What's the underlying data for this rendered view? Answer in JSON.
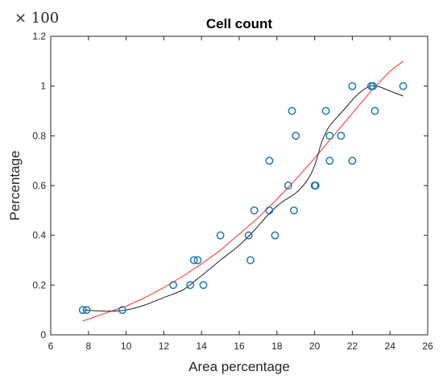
{
  "chart_data": {
    "type": "scatter",
    "title": "Cell count",
    "xlabel": "Area percentage",
    "ylabel": "Percentage",
    "y_multiplier": "× 100",
    "xlim": [
      6,
      26
    ],
    "ylim": [
      0,
      1.2
    ],
    "x_ticks": [
      "6",
      "8",
      "10",
      "12",
      "14",
      "16",
      "18",
      "20",
      "22",
      "24",
      "26"
    ],
    "y_ticks": [
      "0",
      "0.2",
      "0.4",
      "0.6",
      "0.8",
      "1",
      "1.2"
    ],
    "grid": false,
    "colors": {
      "points": "#1f77b4",
      "fit": "#ff2a2a",
      "smooth": "#202020"
    },
    "series": [
      {
        "points": [
          [
            7.7,
            0.1
          ],
          [
            7.9,
            0.1
          ],
          [
            9.8,
            0.1
          ],
          [
            12.5,
            0.2
          ],
          [
            13.4,
            0.2
          ],
          [
            13.6,
            0.3
          ],
          [
            13.8,
            0.3
          ],
          [
            14.1,
            0.2
          ],
          [
            15.0,
            0.4
          ],
          [
            16.5,
            0.4
          ],
          [
            16.6,
            0.3
          ],
          [
            16.8,
            0.5
          ],
          [
            17.6,
            0.5
          ],
          [
            17.6,
            0.7
          ],
          [
            17.9,
            0.4
          ],
          [
            18.6,
            0.6
          ],
          [
            18.8,
            0.9
          ],
          [
            18.9,
            0.5
          ],
          [
            19.0,
            0.8
          ],
          [
            20.0,
            0.6
          ],
          [
            20.05,
            0.6
          ],
          [
            20.6,
            0.9
          ],
          [
            20.8,
            0.8
          ],
          [
            20.8,
            0.7
          ],
          [
            21.4,
            0.8
          ],
          [
            22.0,
            1.0
          ],
          [
            22.0,
            0.7
          ],
          [
            23.0,
            1.0
          ],
          [
            23.1,
            1.0
          ],
          [
            23.2,
            0.9
          ],
          [
            24.7,
            1.0
          ]
        ]
      }
    ],
    "fit_curve": [
      [
        7.7,
        0.055
      ],
      [
        9,
        0.09
      ],
      [
        10,
        0.115
      ],
      [
        11,
        0.15
      ],
      [
        12,
        0.19
      ],
      [
        13,
        0.235
      ],
      [
        14,
        0.285
      ],
      [
        15,
        0.34
      ],
      [
        16,
        0.405
      ],
      [
        17,
        0.47
      ],
      [
        18,
        0.545
      ],
      [
        19,
        0.625
      ],
      [
        20,
        0.71
      ],
      [
        21,
        0.8
      ],
      [
        22,
        0.89
      ],
      [
        23,
        0.98
      ],
      [
        24,
        1.06
      ],
      [
        24.7,
        1.1
      ]
    ],
    "smooth_curve": [
      [
        7.7,
        0.1
      ],
      [
        9,
        0.095
      ],
      [
        10,
        0.1
      ],
      [
        11,
        0.12
      ],
      [
        12,
        0.15
      ],
      [
        13,
        0.18
      ],
      [
        13.7,
        0.22
      ],
      [
        14.2,
        0.25
      ],
      [
        15,
        0.3
      ],
      [
        16,
        0.36
      ],
      [
        16.8,
        0.42
      ],
      [
        17.5,
        0.48
      ],
      [
        18.2,
        0.53
      ],
      [
        19,
        0.57
      ],
      [
        19.6,
        0.62
      ],
      [
        20,
        0.68
      ],
      [
        20.4,
        0.78
      ],
      [
        20.8,
        0.84
      ],
      [
        21.5,
        0.9
      ],
      [
        22.2,
        0.96
      ],
      [
        22.8,
        0.995
      ],
      [
        23.3,
        1.0
      ],
      [
        24,
        0.98
      ],
      [
        24.7,
        0.96
      ]
    ]
  }
}
